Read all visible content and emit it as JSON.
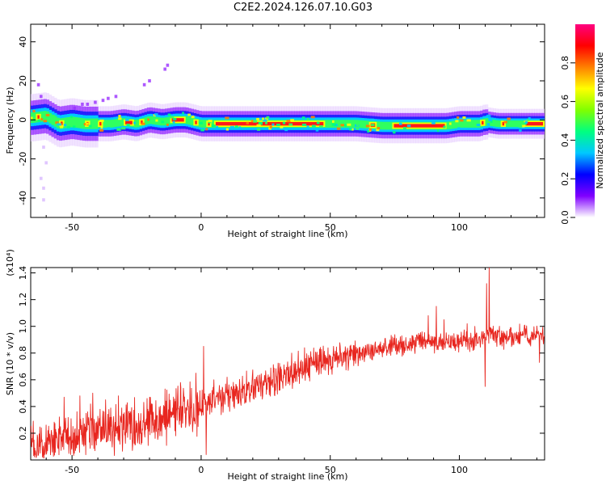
{
  "title": "C2E2.2024.126.07.10.G03",
  "chart_data": [
    {
      "type": "heatmap",
      "title": "C2E2.2024.126.07.10.G03",
      "xlabel": "Height of straight line (km)",
      "ylabel": "Frequency (Hz)",
      "xlim": [
        -66,
        133
      ],
      "ylim": [
        -50,
        49
      ],
      "xticks": [
        -50,
        0,
        50,
        100
      ],
      "yticks": [
        -40,
        -20,
        0,
        20,
        40
      ],
      "colorbar": {
        "label": "Normalized spectral amplitude",
        "range": [
          0,
          1
        ],
        "ticks": [
          "0.0",
          "0.2",
          "0.4",
          "0.6",
          "0.8"
        ],
        "colors": [
          "#ffffff",
          "#8000ff",
          "#0000ff",
          "#00c8ff",
          "#00ff80",
          "#80ff00",
          "#ffff00",
          "#ff8000",
          "#ff0000",
          "#ff0080"
        ]
      },
      "ridge": {
        "x": [
          -66,
          -60,
          -55,
          -50,
          -45,
          -40,
          -35,
          -30,
          -25,
          -20,
          -15,
          -10,
          -6,
          -3,
          0,
          5,
          10,
          20,
          30,
          40,
          50,
          60,
          70,
          80,
          90,
          95,
          100,
          105,
          108,
          110,
          115,
          120,
          125,
          133
        ],
        "y": [
          1,
          2,
          -2,
          -1,
          -2,
          -2,
          -2,
          -1,
          -2,
          0,
          -1,
          0,
          0,
          -1,
          -2,
          -2,
          -2,
          -2,
          -2,
          -2,
          -2,
          -2,
          -3,
          -3,
          -3,
          -3,
          -2,
          -2,
          -2,
          -1,
          -2,
          -2,
          -2,
          -2
        ]
      },
      "stray_points": [
        {
          "x": -49,
          "y": 6
        },
        {
          "x": -46,
          "y": 8
        },
        {
          "x": -44,
          "y": 8
        },
        {
          "x": -41,
          "y": 9
        },
        {
          "x": -38,
          "y": 10
        },
        {
          "x": -36,
          "y": 11
        },
        {
          "x": -33,
          "y": 12
        },
        {
          "x": -22,
          "y": 18
        },
        {
          "x": -20,
          "y": 20
        },
        {
          "x": -14,
          "y": 26
        },
        {
          "x": -13,
          "y": 28
        },
        {
          "x": -63,
          "y": 18
        },
        {
          "x": -62,
          "y": 12
        },
        {
          "x": -61,
          "y": -14
        },
        {
          "x": -60,
          "y": -22
        },
        {
          "x": -62,
          "y": -30
        },
        {
          "x": -61,
          "y": -35
        },
        {
          "x": -61,
          "y": -41
        }
      ]
    },
    {
      "type": "line",
      "xlabel": "Height of straight line (km)",
      "ylabel": "SNR (10 * v/v)",
      "y_multiplier": "(x10⁴)",
      "xlim": [
        -66,
        133
      ],
      "ylim": [
        0,
        1.44
      ],
      "xticks": [
        -50,
        0,
        50,
        100
      ],
      "yticks": [
        0.2,
        0.4,
        0.6,
        0.8,
        1.0,
        1.2,
        1.4
      ],
      "series": [
        {
          "color": "#e8261f",
          "trend_x": [
            -66,
            -60,
            -50,
            -40,
            -30,
            -20,
            -10,
            0,
            10,
            20,
            30,
            40,
            50,
            60,
            70,
            80,
            90,
            100,
            108,
            111,
            115,
            120,
            125,
            133
          ],
          "trend_y": [
            0.08,
            0.12,
            0.18,
            0.22,
            0.24,
            0.28,
            0.33,
            0.4,
            0.48,
            0.55,
            0.62,
            0.7,
            0.75,
            0.79,
            0.84,
            0.87,
            0.88,
            0.88,
            0.9,
            0.95,
            0.92,
            0.92,
            0.93,
            0.95
          ],
          "spikes": [
            {
              "x": -53,
              "y": 0.47
            },
            {
              "x": -47,
              "y": 0.48
            },
            {
              "x": -42,
              "y": 0.5
            },
            {
              "x": -37,
              "y": 0.45
            },
            {
              "x": -32,
              "y": 0.48
            },
            {
              "x": -21,
              "y": 0.46
            },
            {
              "x": -20,
              "y": 0.47
            },
            {
              "x": -8,
              "y": 0.58
            },
            {
              "x": -2,
              "y": 0.65
            },
            {
              "x": 1,
              "y": 0.85
            },
            {
              "x": 2,
              "y": 0.04
            },
            {
              "x": 5,
              "y": 0.6
            },
            {
              "x": 10,
              "y": 0.62
            },
            {
              "x": 35,
              "y": 0.8
            },
            {
              "x": 40,
              "y": 0.84
            },
            {
              "x": 88,
              "y": 1.08
            },
            {
              "x": 91,
              "y": 1.15
            },
            {
              "x": 94,
              "y": 1.05
            },
            {
              "x": 103,
              "y": 1.02
            },
            {
              "x": 106,
              "y": 1.0
            },
            {
              "x": 110,
              "y": 0.55
            },
            {
              "x": 110.5,
              "y": 1.32
            },
            {
              "x": 111.5,
              "y": 1.44
            },
            {
              "x": 131,
              "y": 0.73
            }
          ]
        }
      ]
    }
  ]
}
